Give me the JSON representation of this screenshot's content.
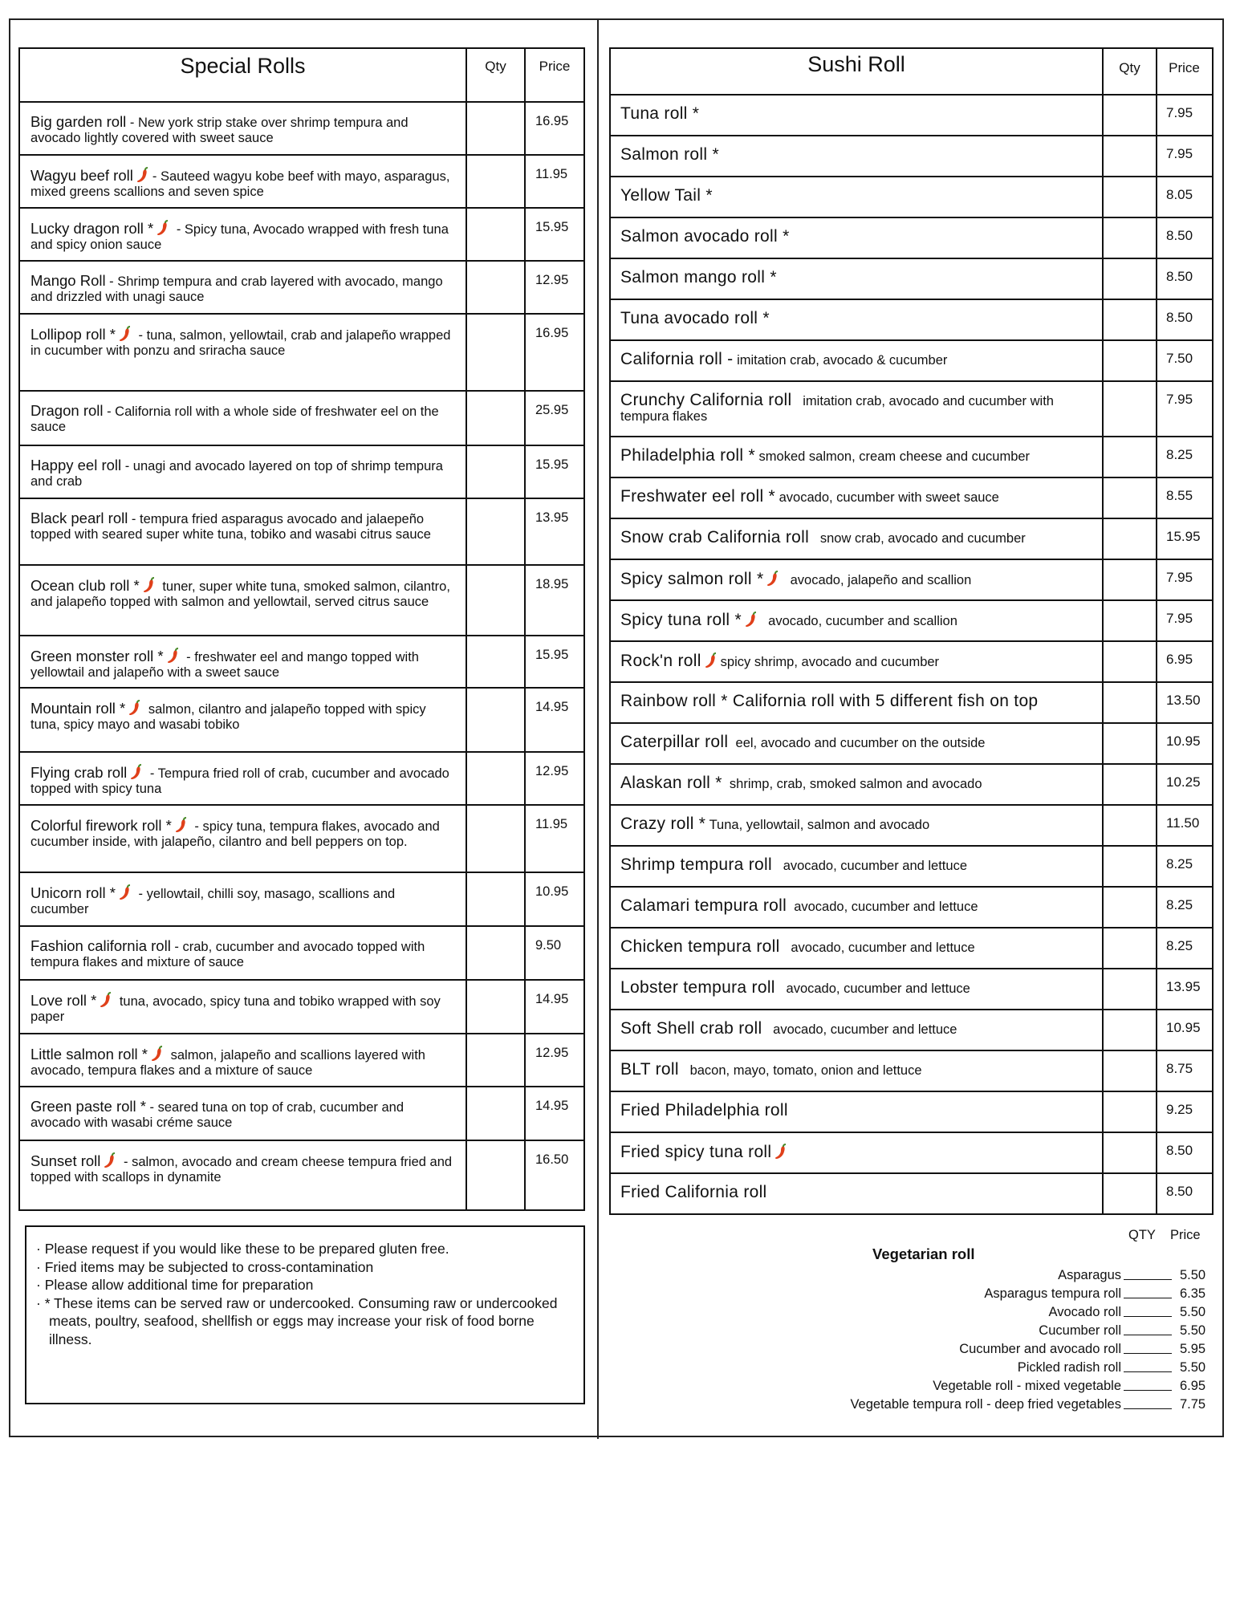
{
  "special_rolls": {
    "title": "Special Rolls",
    "qty_label": "Qty",
    "price_label": "Price",
    "items": [
      {
        "name": "Big garden roll",
        "spicy": false,
        "desc": " - New york strip stake over shrimp tempura and avocado lightly covered with sweet sauce",
        "price": "16.95"
      },
      {
        "name": "Wagyu beef roll",
        "spicy": true,
        "desc": "- Sauteed wagyu kobe beef with mayo, asparagus, mixed greens scallions and seven spice",
        "price": "11.95"
      },
      {
        "name": "Lucky dragon roll *",
        "spicy": true,
        "desc": " - Spicy tuna, Avocado wrapped with fresh tuna and spicy onion sauce",
        "price": "15.95"
      },
      {
        "name": "Mango Roll",
        "spicy": false,
        "desc": " - Shrimp tempura and crab layered with avocado, mango and drizzled with unagi sauce",
        "price": "12.95"
      },
      {
        "name": "Lollipop roll *",
        "spicy": true,
        "desc": " - tuna, salmon, yellowtail, crab and jalapeño wrapped in cucumber with ponzu and sriracha sauce",
        "price": "16.95"
      },
      {
        "name": "Dragon roll",
        "spicy": false,
        "desc": " - California roll with a whole side of freshwater eel on the sauce",
        "price": "25.95"
      },
      {
        "name": "Happy eel roll",
        "spicy": false,
        "desc": " - unagi and avocado layered on top of shrimp tempura and crab",
        "price": "15.95"
      },
      {
        "name": "Black pearl roll",
        "spicy": false,
        "desc": " - tempura fried asparagus avocado and jalaepeño topped with seared super white tuna, tobiko and wasabi citrus sauce",
        "price": "13.95"
      },
      {
        "name": "Ocean club roll *",
        "spicy": true,
        "desc": " tuner, super white tuna, smoked salmon, cilantro, and jalapeño topped with salmon and yellowtail, served citrus sauce",
        "price": "18.95"
      },
      {
        "name": "Green monster roll *",
        "spicy": true,
        "desc": " - freshwater eel and mango topped with yellowtail and jalapeño with a sweet sauce",
        "price": "15.95"
      },
      {
        "name": "Mountain roll *",
        "spicy": true,
        "desc": " salmon, cilantro and jalapeño topped with spicy tuna, spicy mayo and wasabi tobiko",
        "price": "14.95"
      },
      {
        "name": "Flying crab roll",
        "spicy": true,
        "desc": " - Tempura fried roll of crab, cucumber and avocado topped with spicy tuna",
        "price": "12.95"
      },
      {
        "name": "Colorful firework roll *",
        "spicy": true,
        "desc": " - spicy tuna, tempura flakes, avocado and cucumber inside, with jalapeño, cilantro and bell peppers on top.",
        "price": "11.95"
      },
      {
        "name": "Unicorn roll *",
        "spicy": true,
        "desc": " - yellowtail, chilli soy, masago, scallions and cucumber",
        "price": "10.95"
      },
      {
        "name": "Fashion california roll",
        "spicy": false,
        "desc": " - crab, cucumber and avocado topped with tempura flakes and mixture of sauce",
        "price": "9.50"
      },
      {
        "name": "Love roll *",
        "spicy": true,
        "desc": " tuna, avocado, spicy tuna and tobiko wrapped with soy paper",
        "price": "14.95"
      },
      {
        "name": "Little salmon roll *",
        "spicy": true,
        "desc": " salmon, jalapeño and scallions layered with avocado, tempura flakes and a mixture of sauce",
        "price": "12.95"
      },
      {
        "name": "Green paste roll *",
        "spicy": false,
        "desc": " - seared tuna on top of crab, cucumber and avocado with wasabi créme sauce",
        "price": "14.95"
      },
      {
        "name": "Sunset roll",
        "spicy": true,
        "desc": " - salmon, avocado and cream cheese tempura fried and topped with scallops in dynamite",
        "price": "16.50"
      }
    ]
  },
  "sushi_roll": {
    "title": "Sushi Roll",
    "qty_label": "Qty",
    "price_label": "Price",
    "items": [
      {
        "name": "Tuna roll *",
        "spicy": false,
        "desc": "",
        "price": "7.95"
      },
      {
        "name": "Salmon roll *",
        "spicy": false,
        "desc": "",
        "price": "7.95"
      },
      {
        "name": "Yellow Tail *",
        "spicy": false,
        "desc": "",
        "price": "8.05"
      },
      {
        "name": "Salmon avocado roll *",
        "spicy": false,
        "desc": "",
        "price": "8.50"
      },
      {
        "name": "Salmon mango roll *",
        "spicy": false,
        "desc": "",
        "price": "8.50"
      },
      {
        "name": "Tuna avocado roll *",
        "spicy": false,
        "desc": "",
        "price": "8.50"
      },
      {
        "name": "California roll -",
        "spicy": false,
        "desc": " imitation crab, avocado & cucumber",
        "price": "7.50"
      },
      {
        "name": "Crunchy California roll",
        "spicy": false,
        "desc": "   imitation crab, avocado and cucumber with tempura flakes",
        "price": "7.95"
      },
      {
        "name": "Philadelphia roll *",
        "spicy": false,
        "desc": " smoked salmon, cream cheese and cucumber",
        "price": "8.25"
      },
      {
        "name": "Freshwater eel roll *",
        "spicy": false,
        "desc": " avocado, cucumber with sweet sauce",
        "price": "8.55"
      },
      {
        "name": "Snow crab California roll",
        "spicy": false,
        "desc": "   snow crab, avocado and cucumber",
        "price": "15.95"
      },
      {
        "name": "Spicy salmon roll *",
        "spicy": true,
        "desc": "  avocado, jalapeño and scallion",
        "price": "7.95"
      },
      {
        "name": "Spicy tuna roll *",
        "spicy": true,
        "desc": "  avocado, cucumber and scallion",
        "price": "7.95"
      },
      {
        "name": "Rock'n roll",
        "spicy": true,
        "desc": "spicy shrimp, avocado and cucumber",
        "price": "6.95"
      },
      {
        "name": "Rainbow roll * California roll with 5 different fish on top",
        "spicy": false,
        "desc": "",
        "price": "13.50"
      },
      {
        "name": "Caterpillar roll",
        "spicy": false,
        "desc": "  eel, avocado and cucumber on the outside",
        "price": "10.95"
      },
      {
        "name": "Alaskan roll *",
        "spicy": false,
        "desc": "  shrimp, crab, smoked salmon and avocado",
        "price": "10.25"
      },
      {
        "name": "Crazy roll *",
        "spicy": false,
        "desc": " Tuna, yellowtail, salmon and avocado",
        "price": "11.50"
      },
      {
        "name": "Shrimp tempura roll",
        "spicy": false,
        "desc": "   avocado, cucumber and lettuce",
        "price": "8.25"
      },
      {
        "name": "Calamari tempura roll",
        "spicy": false,
        "desc": "  avocado, cucumber and lettuce",
        "price": "8.25"
      },
      {
        "name": "Chicken tempura roll",
        "spicy": false,
        "desc": "   avocado, cucumber and lettuce",
        "price": "8.25"
      },
      {
        "name": "Lobster tempura roll",
        "spicy": false,
        "desc": "   avocado, cucumber and lettuce",
        "price": "13.95"
      },
      {
        "name": "Soft Shell crab roll",
        "spicy": false,
        "desc": "   avocado, cucumber and lettuce",
        "price": "10.95"
      },
      {
        "name": "BLT roll",
        "spicy": false,
        "desc": "   bacon, mayo, tomato, onion and lettuce",
        "price": "8.75"
      },
      {
        "name": "Fried Philadelphia roll",
        "spicy": false,
        "desc": "",
        "price": "9.25"
      },
      {
        "name": "Fried spicy tuna roll",
        "spicy": true,
        "desc": "",
        "price": "8.50"
      },
      {
        "name": "Fried California roll",
        "spicy": false,
        "desc": "",
        "price": "8.50"
      }
    ]
  },
  "notes": [
    "· Please request if you would like these to be prepared gluten free.",
    "· Fried items may be subjected to cross-contamination",
    "· Please allow additional time for preparation",
    "· * These items can be served raw or undercooked. Consuming  raw or undercooked meats, poultry, seafood, shellfish or eggs may increase your risk of food borne illness."
  ],
  "vegetarian": {
    "title": "Vegetarian roll",
    "qty_label": "QTY",
    "price_label": "Price",
    "items": [
      {
        "name": "Asparagus",
        "price": "5.50"
      },
      {
        "name": "Asparagus tempura roll",
        "price": "6.35"
      },
      {
        "name": "Avocado roll",
        "price": "5.50"
      },
      {
        "name": "Cucumber roll",
        "price": "5.50"
      },
      {
        "name": "Cucumber and avocado roll",
        "price": "5.95"
      },
      {
        "name": "Pickled radish roll",
        "price": "5.50"
      },
      {
        "name": "Vegetable roll - mixed vegetable",
        "price": "6.95"
      },
      {
        "name": "Vegetable tempura roll - deep fried vegetables",
        "price": "7.75"
      }
    ]
  },
  "colors": {
    "chili": "#e0401a",
    "chili_stem": "#4a8a2a",
    "border": "#111111"
  }
}
